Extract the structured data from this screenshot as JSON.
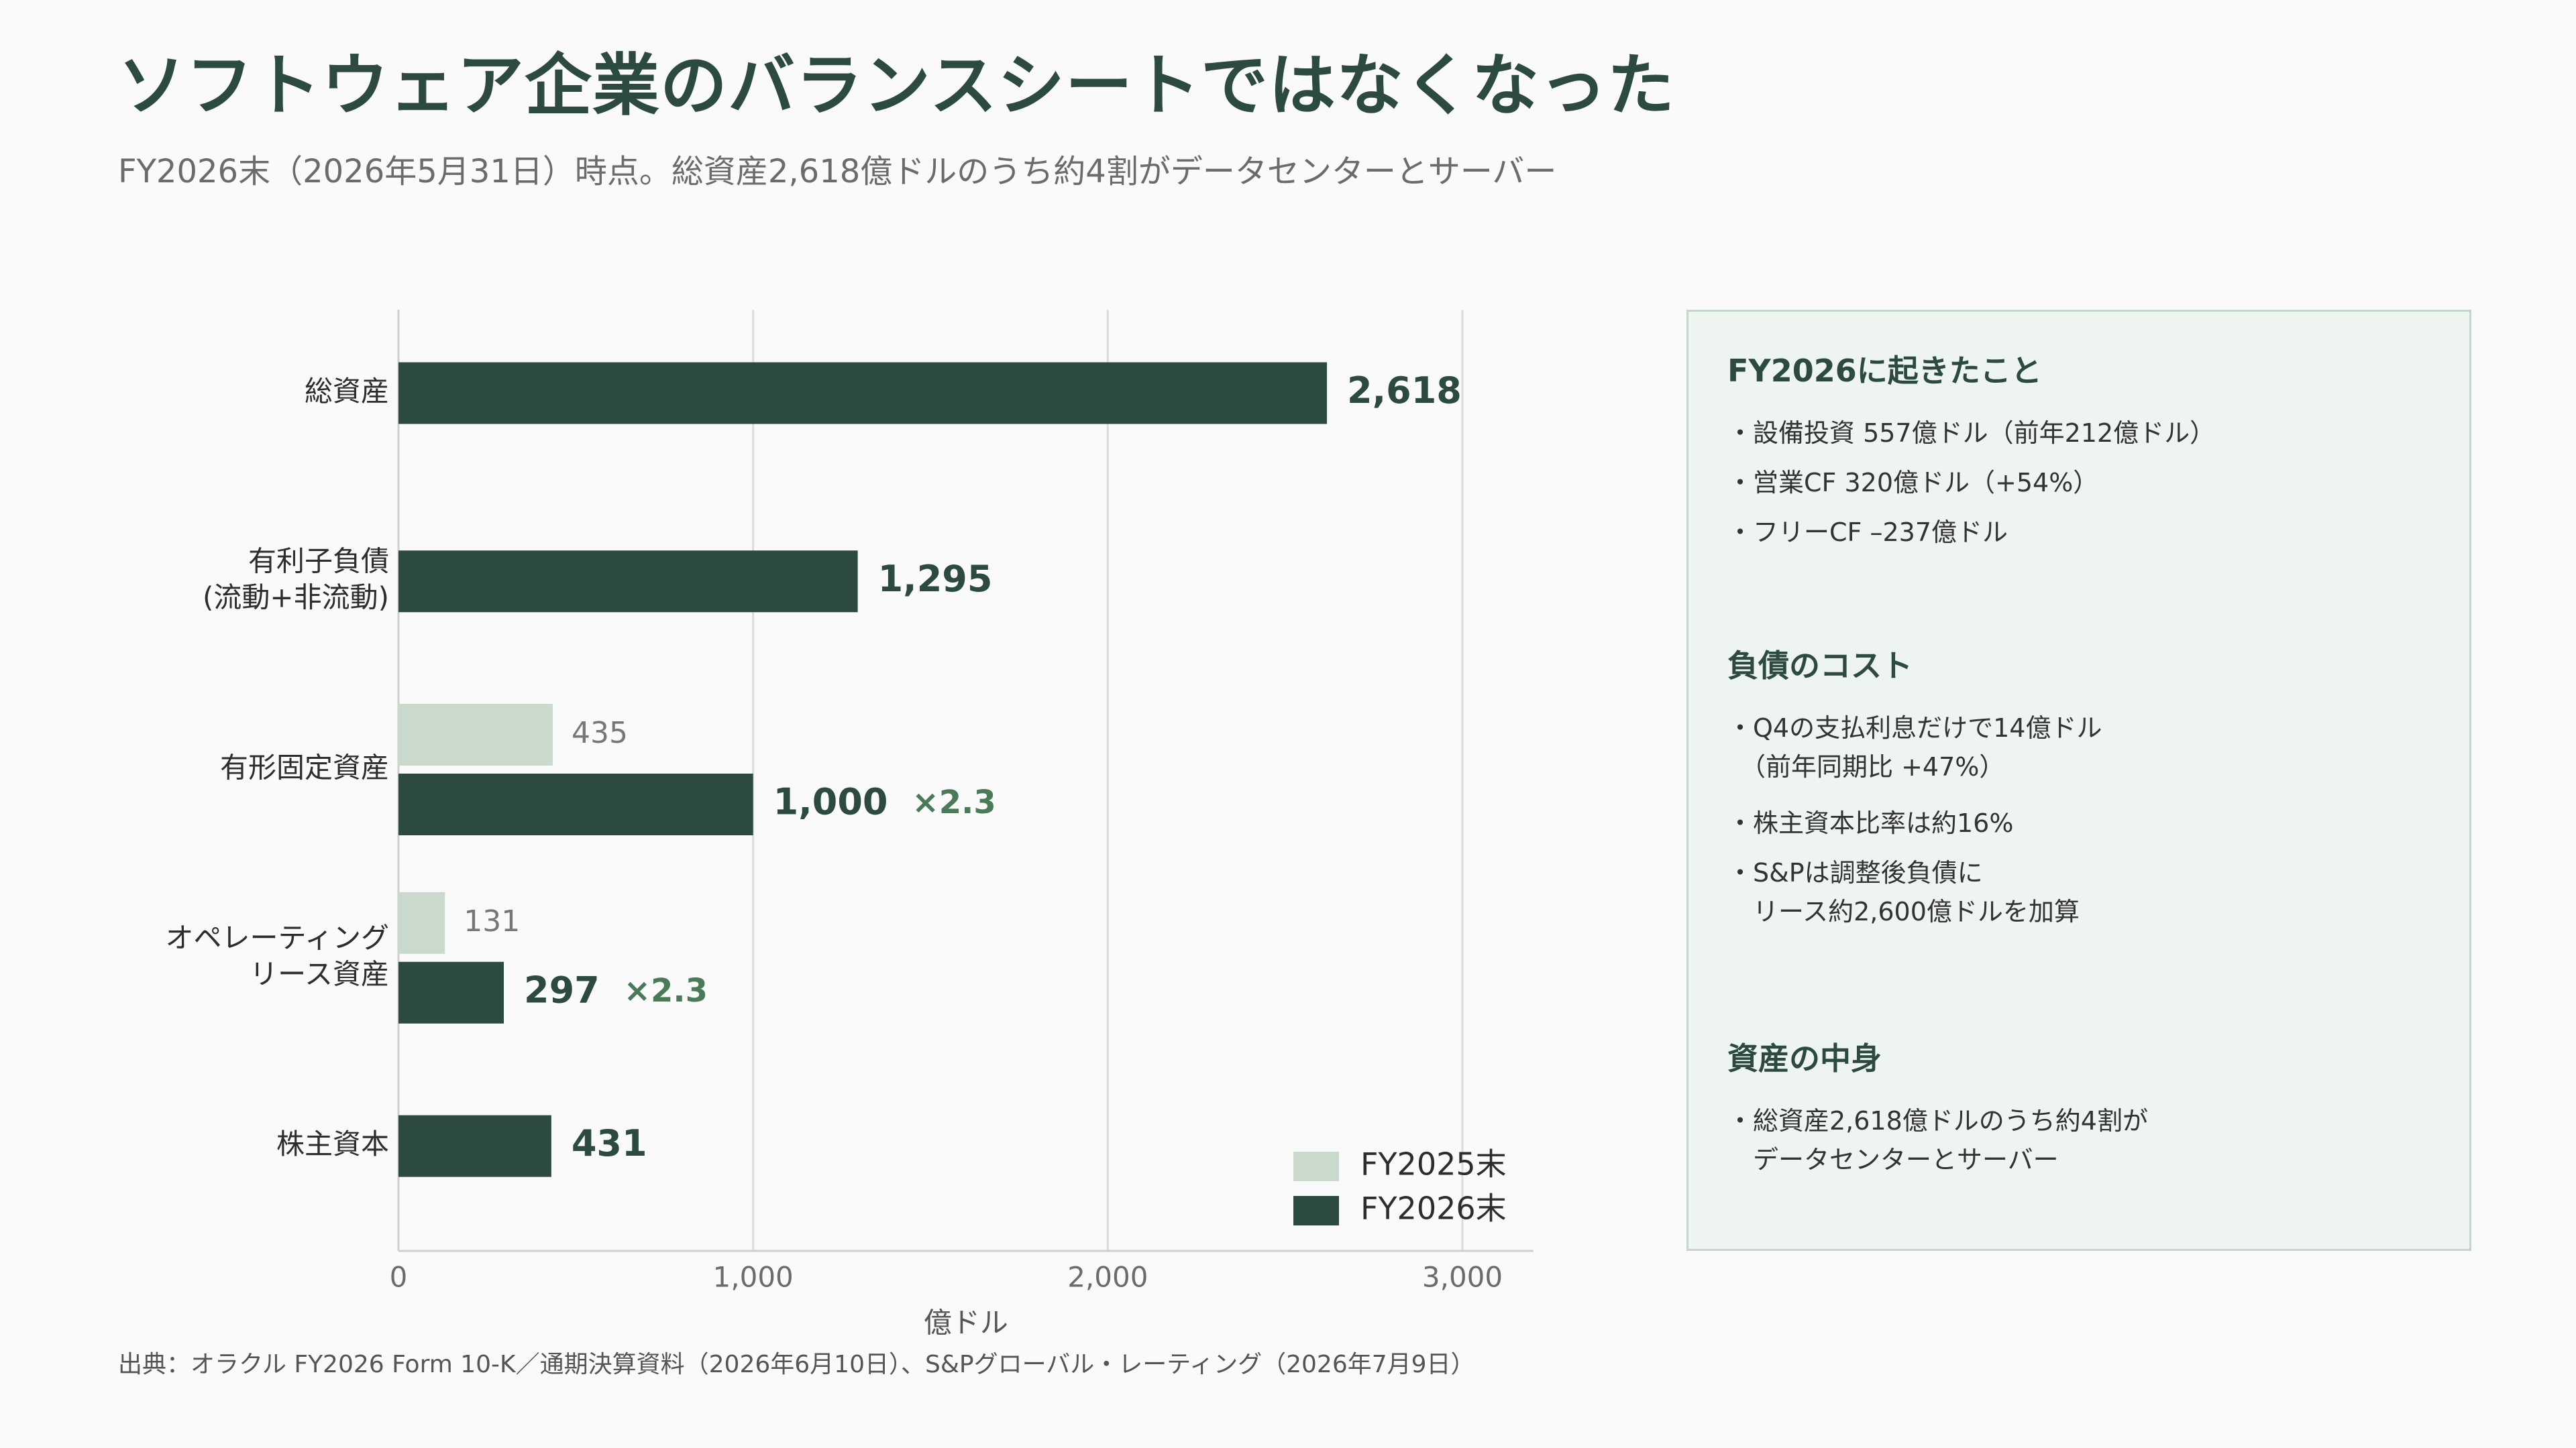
{
  "header": {
    "title": "ソフトウェア企業のバランスシートではなくなった",
    "subtitle": "FY2026末（2026年5月31日）時点。総資産2,618億ドルのうち約4割がデータセンターとサーバー"
  },
  "colors": {
    "fy2025": "#c9dacd",
    "fy2026": "#2d4a40",
    "multiplier": "#4a7a58",
    "grid": "#dcdcdc",
    "text": "#2d2d2d"
  },
  "chart_data": {
    "type": "bar",
    "orientation": "horizontal",
    "categories": [
      [
        "総資産"
      ],
      [
        "有利子負債",
        "(流動+非流動)"
      ],
      [
        "有形固定資産"
      ],
      [
        "オペレーティング",
        "リース資産"
      ],
      [
        "株主資本"
      ]
    ],
    "series": [
      {
        "name": "FY2025末",
        "values": [
          null,
          null,
          435,
          131,
          null
        ]
      },
      {
        "name": "FY2026末",
        "values": [
          2618,
          1295,
          1000,
          297,
          431
        ]
      }
    ],
    "data_labels": {
      "FY2025末": [
        null,
        null,
        "435",
        "131",
        null
      ],
      "FY2026末": [
        "2,618",
        "1,295",
        "1,000",
        "297",
        "431"
      ]
    },
    "multipliers": [
      null,
      null,
      "×2.3",
      "×2.3",
      null
    ],
    "xlabel": "億ドル",
    "xlim": [
      0,
      3200
    ],
    "xticks": [
      0,
      1000,
      2000,
      3000
    ],
    "xtick_labels": [
      "0",
      "1,000",
      "2,000",
      "3,000"
    ],
    "grid": "vertical",
    "legend": "bottom-right"
  },
  "panel": {
    "sections": [
      {
        "heading": "FY2026に起きたこと",
        "items": [
          "・設備投資 557億ドル（前年212億ドル）",
          "・営業CF 320億ドル（+54%）",
          "・フリーCF –237億ドル"
        ]
      },
      {
        "heading": "負債のコスト",
        "items": [
          "・Q4の支払利息だけで14億ドル\n　（前年同期比 +47%）",
          "・株主資本比率は約16%",
          "・S&Pは調整後負債に\n　リース約2,600億ドルを加算"
        ]
      },
      {
        "heading": "資産の中身",
        "items": [
          "・総資産2,618億ドルのうち約4割が\n　データセンターとサーバー"
        ]
      }
    ]
  },
  "footer": {
    "source": "出典：オラクル FY2026 Form 10-K／通期決算資料（2026年6月10日）、S&Pグローバル・レーティング（2026年7月9日）"
  }
}
